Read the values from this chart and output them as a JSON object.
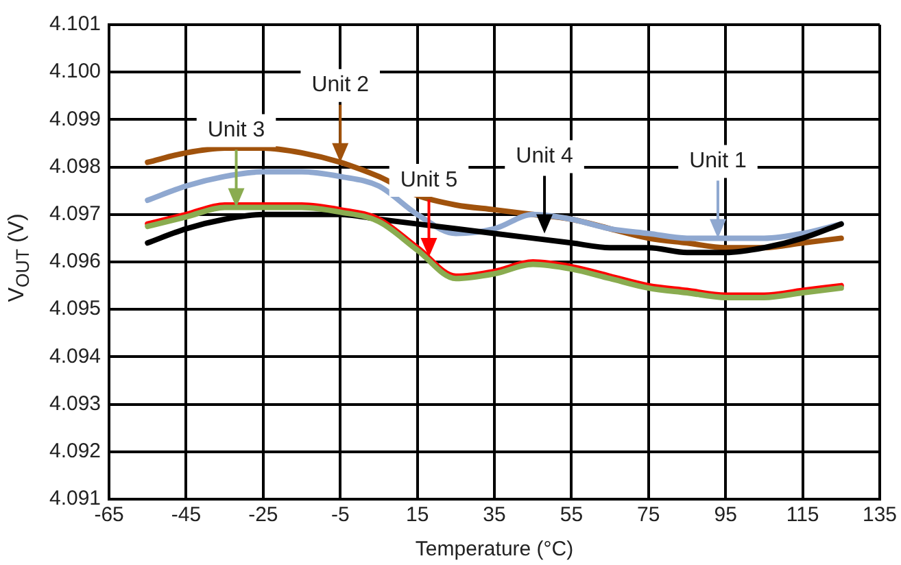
{
  "chart_data": {
    "type": "line",
    "xlabel": "Temperature (°C)",
    "ylabel": "V$_{OUT}$ (V)",
    "x": [
      -55,
      -45,
      -35,
      -25,
      -15,
      -5,
      5,
      15,
      25,
      35,
      45,
      55,
      65,
      75,
      85,
      95,
      105,
      115,
      125
    ],
    "series": [
      {
        "color": "#8aac50",
        "values": [
          4.09675,
          4.09695,
          4.09715,
          4.09715,
          4.09715,
          4.09705,
          4.09685,
          4.09625,
          4.09565,
          4.09575,
          4.09595,
          4.09585,
          4.09565,
          4.09545,
          4.09535,
          4.09525,
          4.09525,
          4.09535,
          4.09545
        ]
      },
      {
        "color": "#ff0000",
        "values": [
          4.0968,
          4.097,
          4.0972,
          4.0972,
          4.0972,
          4.0971,
          4.0969,
          4.0963,
          4.0957,
          4.0958,
          4.096,
          4.0959,
          4.0957,
          4.0955,
          4.0954,
          4.0953,
          4.0953,
          4.0954,
          4.0955
        ]
      },
      {
        "color": "#000000",
        "values": [
          4.0964,
          4.0967,
          4.0969,
          4.097,
          4.097,
          4.097,
          4.0969,
          4.0968,
          4.0967,
          4.0966,
          4.0965,
          4.0964,
          4.0963,
          4.0963,
          4.0962,
          4.0962,
          4.0963,
          4.0965,
          4.0968
        ]
      },
      {
        "color": "#8fa8d0",
        "values": [
          4.0973,
          4.0976,
          4.0978,
          4.0979,
          4.0979,
          4.0978,
          4.0976,
          4.097,
          4.0966,
          4.0967,
          4.097,
          4.0969,
          4.0967,
          4.0966,
          4.0965,
          4.0965,
          4.0965,
          4.0966,
          4.0968
        ]
      },
      {
        "color": "#a0520c",
        "values": [
          4.0981,
          4.0983,
          4.0984,
          4.0984,
          4.0983,
          4.0981,
          4.0978,
          4.0974,
          4.0972,
          4.0971,
          4.097,
          4.0969,
          4.0967,
          4.0965,
          4.0964,
          4.0963,
          4.0963,
          4.0964,
          4.0965
        ]
      }
    ],
    "annotations": [
      {
        "text": "Unit 1",
        "x": 93,
        "y": 4.0965
      },
      {
        "text": "Unit 2",
        "x": -5,
        "y": 4.0981
      },
      {
        "text": "Unit 3",
        "x": -32,
        "y": 4.09715
      },
      {
        "text": "Unit 4",
        "x": 48,
        "y": 4.0966
      },
      {
        "text": "Unit 5",
        "x": 18,
        "y": 4.0961
      }
    ],
    "xlim": [
      -65,
      135
    ],
    "xticks": [
      -65,
      -45,
      -25,
      -5,
      15,
      35,
      55,
      75,
      95,
      115,
      135
    ],
    "ylim": [
      4.091,
      4.101
    ],
    "yticks": [
      4.091,
      4.092,
      4.093,
      4.094,
      4.095,
      4.096,
      4.097,
      4.098,
      4.099,
      {
        "value": 4.1,
        "label": "4.100"
      },
      4.101
    ],
    "grid": true,
    "legend": false,
    "marker": "none",
    "line_style": "solid"
  }
}
